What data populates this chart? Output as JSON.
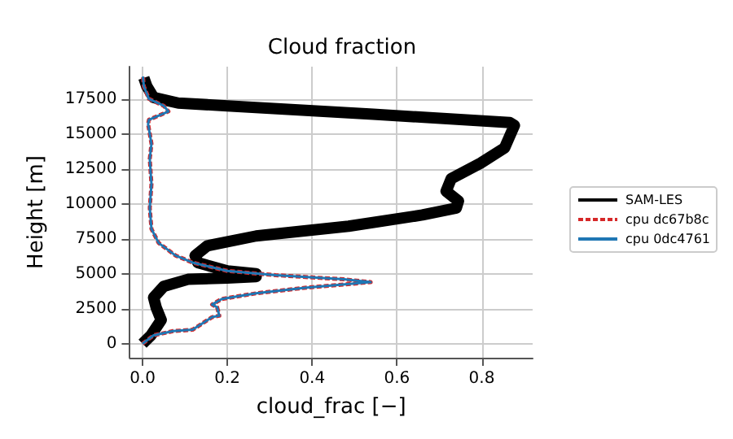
{
  "chart_data": {
    "type": "line",
    "title": "Cloud fraction",
    "xlabel": "cloud_frac [−]",
    "ylabel": "Height [m]",
    "xlim": [
      -0.03,
      0.92
    ],
    "ylim": [
      -1000,
      19800
    ],
    "xticks": [
      {
        "value": 0,
        "label": "0.0"
      },
      {
        "value": 0.2,
        "label": "0.2"
      },
      {
        "value": 0.4,
        "label": "0.4"
      },
      {
        "value": 0.6,
        "label": "0.6"
      },
      {
        "value": 0.8,
        "label": "0.8"
      }
    ],
    "yticks": [
      0,
      2500,
      5000,
      7500,
      10000,
      12500,
      15000,
      17500
    ],
    "grid": true,
    "legend": "right",
    "marker": "none",
    "series": [
      {
        "name": "SAM-LES",
        "color": "#000000",
        "line_style": "solid",
        "x": [
          0,
          0.02,
          0.044,
          0.032,
          0.026,
          0.05,
          0.107,
          0.2,
          0.268,
          0.268,
          0.2,
          0.13,
          0.124,
          0.153,
          0.268,
          0.486,
          0.66,
          0.74,
          0.745,
          0.716,
          0.728,
          0.797,
          0.854,
          0.877,
          0.866,
          0.544,
          0.2,
          0.084,
          0.026,
          0.01,
          0.003
        ],
        "values": [
          0,
          600,
          1700,
          2600,
          3300,
          4100,
          4600,
          4700,
          4800,
          5000,
          5200,
          5800,
          6300,
          7000,
          7700,
          8400,
          9200,
          9700,
          10200,
          10900,
          11800,
          12900,
          14000,
          15600,
          15800,
          16400,
          17000,
          17200,
          17600,
          18400,
          19000
        ]
      },
      {
        "name": "cpu dc67b8c",
        "color": "#d62728",
        "line_style": "dashed",
        "x": [
          0,
          0.026,
          0.072,
          0.118,
          0.164,
          0.181,
          0.176,
          0.164,
          0.187,
          0.268,
          0.383,
          0.538,
          0.475,
          0.314,
          0.2,
          0.118,
          0.078,
          0.038,
          0.021,
          0.017,
          0.021,
          0.017,
          0.021,
          0.013,
          0.015,
          0.061,
          0.05,
          0.015,
          0.003,
          0.001
        ],
        "values": [
          0,
          600,
          900,
          1000,
          1900,
          2000,
          2600,
          2800,
          3200,
          3600,
          4000,
          4400,
          4600,
          4900,
          5200,
          5800,
          6300,
          7200,
          8200,
          9700,
          11400,
          13200,
          14300,
          15700,
          16000,
          16600,
          17000,
          17500,
          18400,
          19100
        ]
      },
      {
        "name": "cpu 0dc4761",
        "color": "#1f77b4",
        "line_style": "solid",
        "x": [
          0,
          0.026,
          0.072,
          0.118,
          0.164,
          0.181,
          0.176,
          0.164,
          0.187,
          0.268,
          0.383,
          0.538,
          0.475,
          0.314,
          0.2,
          0.118,
          0.078,
          0.038,
          0.021,
          0.017,
          0.021,
          0.017,
          0.021,
          0.013,
          0.015,
          0.061,
          0.05,
          0.015,
          0.003,
          0.001
        ],
        "values": [
          0,
          600,
          900,
          1000,
          1900,
          2000,
          2600,
          2800,
          3200,
          3600,
          4000,
          4400,
          4600,
          4900,
          5200,
          5800,
          6300,
          7200,
          8200,
          9700,
          11400,
          13200,
          14300,
          15700,
          16000,
          16600,
          17000,
          17500,
          18400,
          19100
        ]
      }
    ]
  }
}
